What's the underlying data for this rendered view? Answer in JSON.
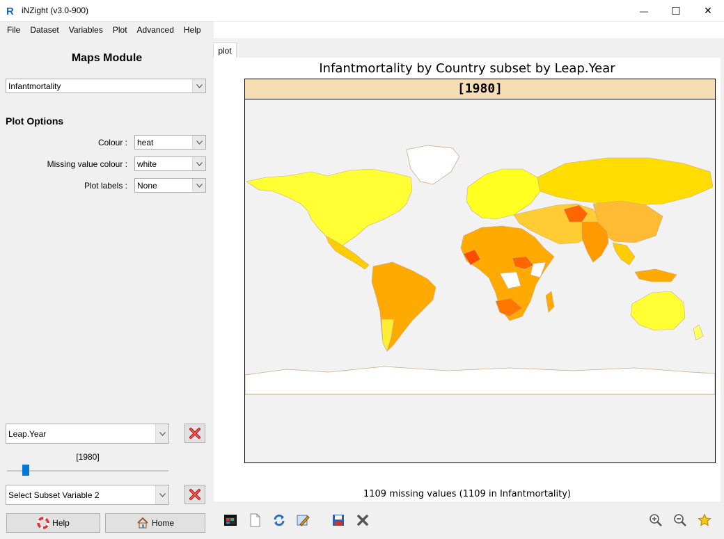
{
  "window": {
    "title": "iNZight (v3.0-900)",
    "minimize_glyph": "—",
    "maximize_glyph": "☐",
    "close_glyph": "✕"
  },
  "menu": [
    "File",
    "Dataset",
    "Variables",
    "Plot",
    "Advanced",
    "Help"
  ],
  "left_panel": {
    "module_title": "Maps Module",
    "variable_select": "Infantmortality",
    "plot_options_heading": "Plot Options",
    "options": [
      {
        "label": "Colour :",
        "value": "heat"
      },
      {
        "label": "Missing value colour :",
        "value": "white"
      },
      {
        "label": "Plot labels :",
        "value": "None"
      }
    ],
    "subset1": {
      "value": "Leap.Year",
      "slider_label": "[1980]",
      "slider_level": 0.1
    },
    "subset2": {
      "value": "Select Subset Variable 2"
    },
    "help_label": "Help",
    "home_label": "Home"
  },
  "tab": {
    "label": "plot"
  },
  "plot": {
    "title": "Infantmortality by Country subset by Leap.Year",
    "strip_label": "[1980]",
    "missing_note": "1109 missing values (1109 in Infantmortality)"
  },
  "colors": {
    "panel_bg": "#f0f0f0",
    "strip_bg": "#f5deb3",
    "heat_low": "#ffff33",
    "heat_mid": "#ffcc00",
    "heat_high": "#ff9900",
    "heat_max": "#ff4d00",
    "missing": "#ffffff",
    "border": "#c8a985",
    "slider_thumb": "#0078d7"
  }
}
